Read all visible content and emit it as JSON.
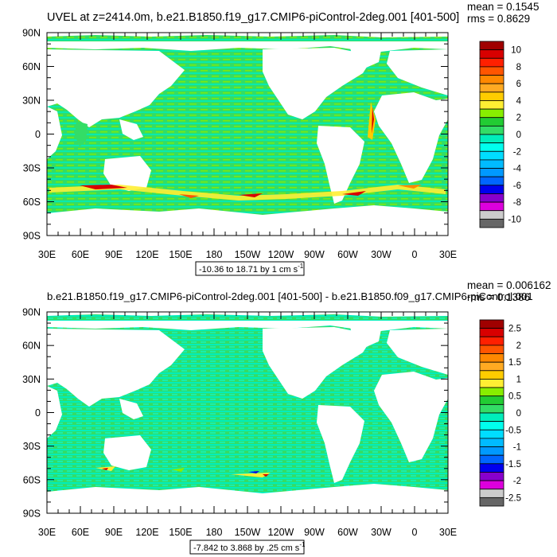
{
  "colors": {
    "ocean_base": "#33dd66",
    "land": "#ffffff",
    "accent_jets": "#ffdd00"
  },
  "chart_data": [
    {
      "type": "heatmap",
      "title": "UVEL at z=2414.0m, b.e21.B1850.f19_g17.CMIP6-piControl-2deg.001 [401-500]",
      "stats": {
        "mean": "mean = 0.1545",
        "rms": "rms = 0.8629"
      },
      "range_label": "-10.36 to 18.71 by 1 cm s",
      "range_superscript": "-1",
      "x_ticks": [
        "30E",
        "60E",
        "90E",
        "120E",
        "150E",
        "180",
        "150W",
        "120W",
        "90W",
        "60W",
        "30W",
        "0",
        "30E"
      ],
      "y_ticks": [
        "90N",
        "60N",
        "30N",
        "0",
        "30S",
        "60S",
        "90S"
      ],
      "colorbar": {
        "labels": [
          "10",
          "8",
          "6",
          "4",
          "2",
          "0",
          "-2",
          "-4",
          "-6",
          "-8",
          "-10"
        ],
        "colors": [
          "#a00000",
          "#d80000",
          "#ff2000",
          "#ff5500",
          "#ff8800",
          "#ffaa22",
          "#ffcc00",
          "#ffee33",
          "#88ee00",
          "#22cc33",
          "#33dd66",
          "#00eebb",
          "#00ffee",
          "#00ddff",
          "#00bbff",
          "#0099ff",
          "#0066ff",
          "#0000ee",
          "#8800cc",
          "#dd00dd",
          "#cccccc",
          "#666666"
        ]
      }
    },
    {
      "type": "heatmap",
      "title": "b.e21.B1850.f19_g17.CMIP6-piControl-2deg.001 [401-500] - b.e21.B1850.f09_g17.CMIP6-piControl.001",
      "stats": {
        "mean": "mean = 0.006162",
        "rms": "rms = 0.1386"
      },
      "range_label": "-7.842 to 3.868 by .25 cm s",
      "range_superscript": "-1",
      "x_ticks": [
        "30E",
        "60E",
        "90E",
        "120E",
        "150E",
        "180",
        "150W",
        "120W",
        "90W",
        "60W",
        "30W",
        "0",
        "30E"
      ],
      "y_ticks": [
        "90N",
        "60N",
        "30N",
        "0",
        "30S",
        "60S",
        "90S"
      ],
      "colorbar": {
        "labels": [
          "2.5",
          "2",
          "1.5",
          "1",
          "0.5",
          "0",
          "-0.5",
          "-1",
          "-1.5",
          "-2",
          "-2.5"
        ],
        "colors": [
          "#a00000",
          "#d80000",
          "#ff2000",
          "#ff5500",
          "#ff8800",
          "#ffaa22",
          "#ffcc00",
          "#ffee33",
          "#88ee00",
          "#22cc33",
          "#33dd66",
          "#00eebb",
          "#00ffee",
          "#00ddff",
          "#00bbff",
          "#0099ff",
          "#0066ff",
          "#0000ee",
          "#8800cc",
          "#dd00dd",
          "#cccccc",
          "#666666"
        ]
      }
    }
  ]
}
